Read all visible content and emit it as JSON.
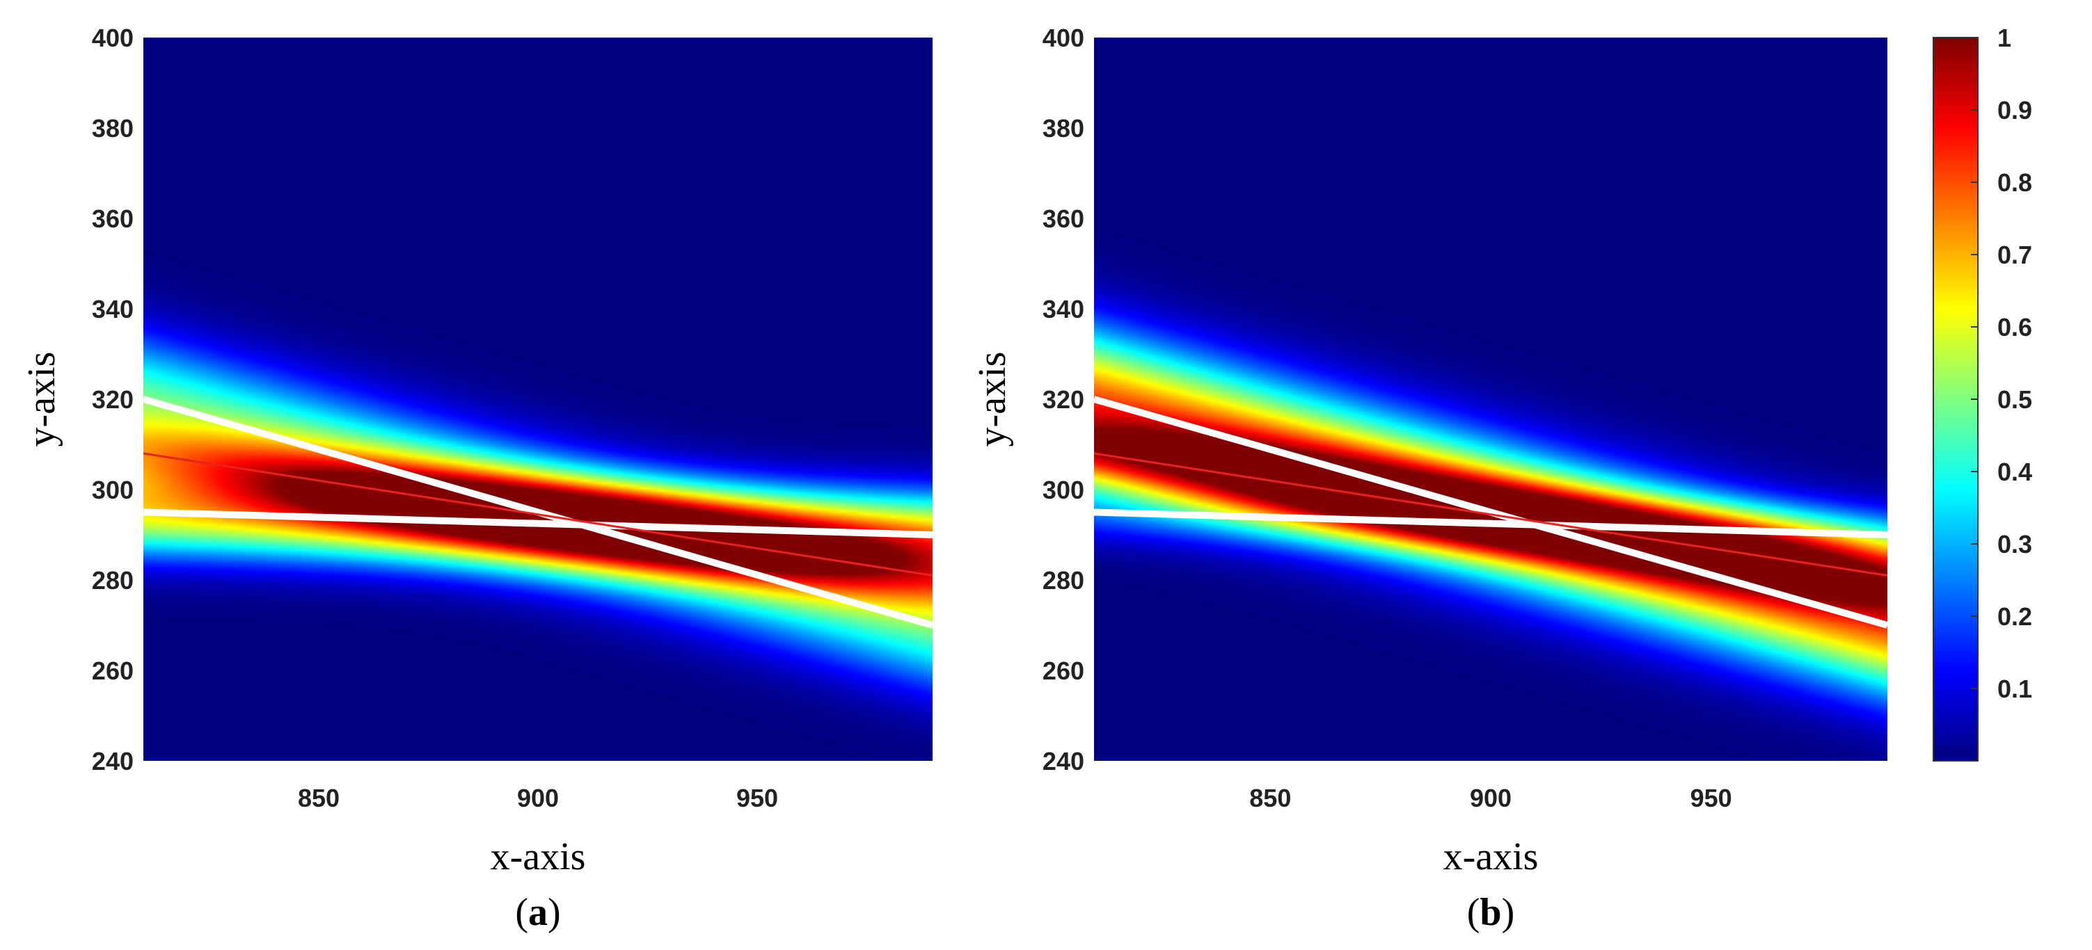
{
  "chart_data": [
    {
      "type": "heatmap",
      "panel_label": "a",
      "xlabel": "x-axis",
      "ylabel": "y-axis",
      "xlim": [
        810,
        990
      ],
      "ylim": [
        240,
        400
      ],
      "xticks": [
        850,
        900,
        950
      ],
      "yticks": [
        240,
        260,
        280,
        300,
        320,
        340,
        360,
        380,
        400
      ],
      "value_range": [
        0,
        1
      ],
      "colormap": "jet",
      "lines": [
        {
          "color": "#ffffff",
          "x": [
            810,
            990
          ],
          "y": [
            320,
            270
          ]
        },
        {
          "color": "#ffffff",
          "x": [
            810,
            990
          ],
          "y": [
            295,
            290
          ]
        },
        {
          "color": "#e8231e",
          "x": [
            810,
            990
          ],
          "y": [
            308,
            281
          ]
        }
      ],
      "bands": [
        {
          "x": [
            810,
            990
          ],
          "y": [
            320,
            270
          ],
          "peak": 0.45,
          "width": 10
        },
        {
          "x": [
            810,
            990
          ],
          "y": [
            295,
            290
          ],
          "peak": 0.6,
          "width": 7
        },
        {
          "x": [
            810,
            990
          ],
          "y": [
            308,
            281
          ],
          "peak": 0.4,
          "width": 6
        }
      ]
    },
    {
      "type": "heatmap",
      "panel_label": "b",
      "xlabel": "x-axis",
      "ylabel": "y-axis",
      "xlim": [
        810,
        990
      ],
      "ylim": [
        240,
        400
      ],
      "xticks": [
        850,
        900,
        950
      ],
      "yticks": [
        240,
        260,
        280,
        300,
        320,
        340,
        360,
        380,
        400
      ],
      "value_range": [
        0,
        1
      ],
      "colormap": "jet",
      "lines": [
        {
          "color": "#ffffff",
          "x": [
            810,
            990
          ],
          "y": [
            320,
            270
          ]
        },
        {
          "color": "#ffffff",
          "x": [
            810,
            990
          ],
          "y": [
            295,
            290
          ]
        },
        {
          "color": "#e8231e",
          "x": [
            810,
            990
          ],
          "y": [
            308,
            281
          ]
        }
      ],
      "bands": [
        {
          "x": [
            810,
            990
          ],
          "y": [
            320,
            270
          ],
          "peak": 0.75,
          "width": 11
        },
        {
          "x": [
            810,
            990
          ],
          "y": [
            308,
            281
          ],
          "peak": 0.55,
          "width": 6
        },
        {
          "x": [
            810,
            990
          ],
          "y": [
            295,
            290
          ],
          "peak": 0.15,
          "width": 5
        }
      ]
    }
  ],
  "colorbar": {
    "min": 0,
    "max": 1,
    "ticks": [
      0.1,
      0.2,
      0.3,
      0.4,
      0.5,
      0.6,
      0.7,
      0.8,
      0.9,
      1
    ],
    "tick_labels": [
      "0.1",
      "0.2",
      "0.3",
      "0.4",
      "0.5",
      "0.6",
      "0.7",
      "0.8",
      "0.9",
      "1"
    ]
  }
}
